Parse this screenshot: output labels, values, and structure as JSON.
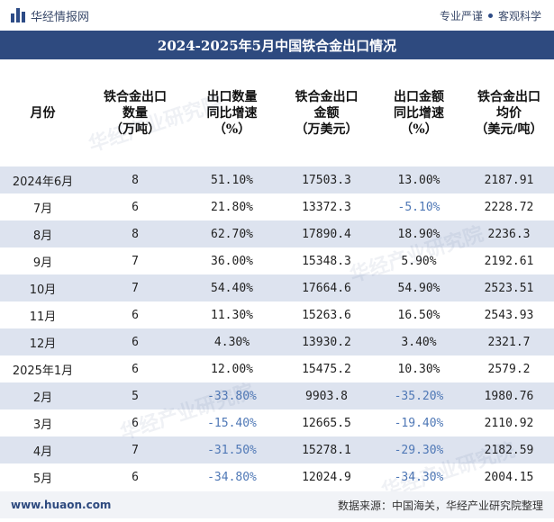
{
  "header": {
    "brand": "华经情报网",
    "tagline_left": "专业严谨",
    "tagline_right": "客观科学"
  },
  "title": "2024-2025年5月中国铁合金出口情况",
  "columns": [
    "月份",
    "铁合金出口\n数量\n（万吨）",
    "出口数量\n同比增速\n（%）",
    "铁合金出口\n金额\n（万美元）",
    "出口金额\n同比增速\n（%）",
    "铁合金出口\n均价\n（美元/吨）"
  ],
  "rows": [
    [
      "2024年6月",
      "8",
      "51.10%",
      "17503.3",
      "13.00%",
      "2187.91"
    ],
    [
      "7月",
      "6",
      "21.80%",
      "13372.3",
      "-5.10%",
      "2228.72"
    ],
    [
      "8月",
      "8",
      "62.70%",
      "17890.4",
      "18.90%",
      "2236.3"
    ],
    [
      "9月",
      "7",
      "36.00%",
      "15348.3",
      "5.90%",
      "2192.61"
    ],
    [
      "10月",
      "7",
      "54.40%",
      "17664.6",
      "54.90%",
      "2523.51"
    ],
    [
      "11月",
      "6",
      "11.30%",
      "15263.6",
      "16.50%",
      "2543.93"
    ],
    [
      "12月",
      "6",
      "4.30%",
      "13930.2",
      "3.40%",
      "2321.7"
    ],
    [
      "2025年1月",
      "6",
      "12.00%",
      "15475.2",
      "10.30%",
      "2579.2"
    ],
    [
      "2月",
      "5",
      "-33.80%",
      "9903.8",
      "-35.20%",
      "1980.76"
    ],
    [
      "3月",
      "6",
      "-15.40%",
      "12665.5",
      "-19.40%",
      "2110.92"
    ],
    [
      "4月",
      "7",
      "-31.50%",
      "15278.1",
      "-29.30%",
      "2182.59"
    ],
    [
      "5月",
      "6",
      "-34.80%",
      "12024.9",
      "-34.30%",
      "2004.15"
    ]
  ],
  "footer": {
    "url": "www.huaon.com",
    "source": "数据来源：中国海关，华经产业研究院整理"
  },
  "watermark": "华经产业研究院",
  "colors": {
    "title_bg": "#2e4a7f",
    "stripe": "#dde3ef",
    "negative": "#4f78b6"
  }
}
